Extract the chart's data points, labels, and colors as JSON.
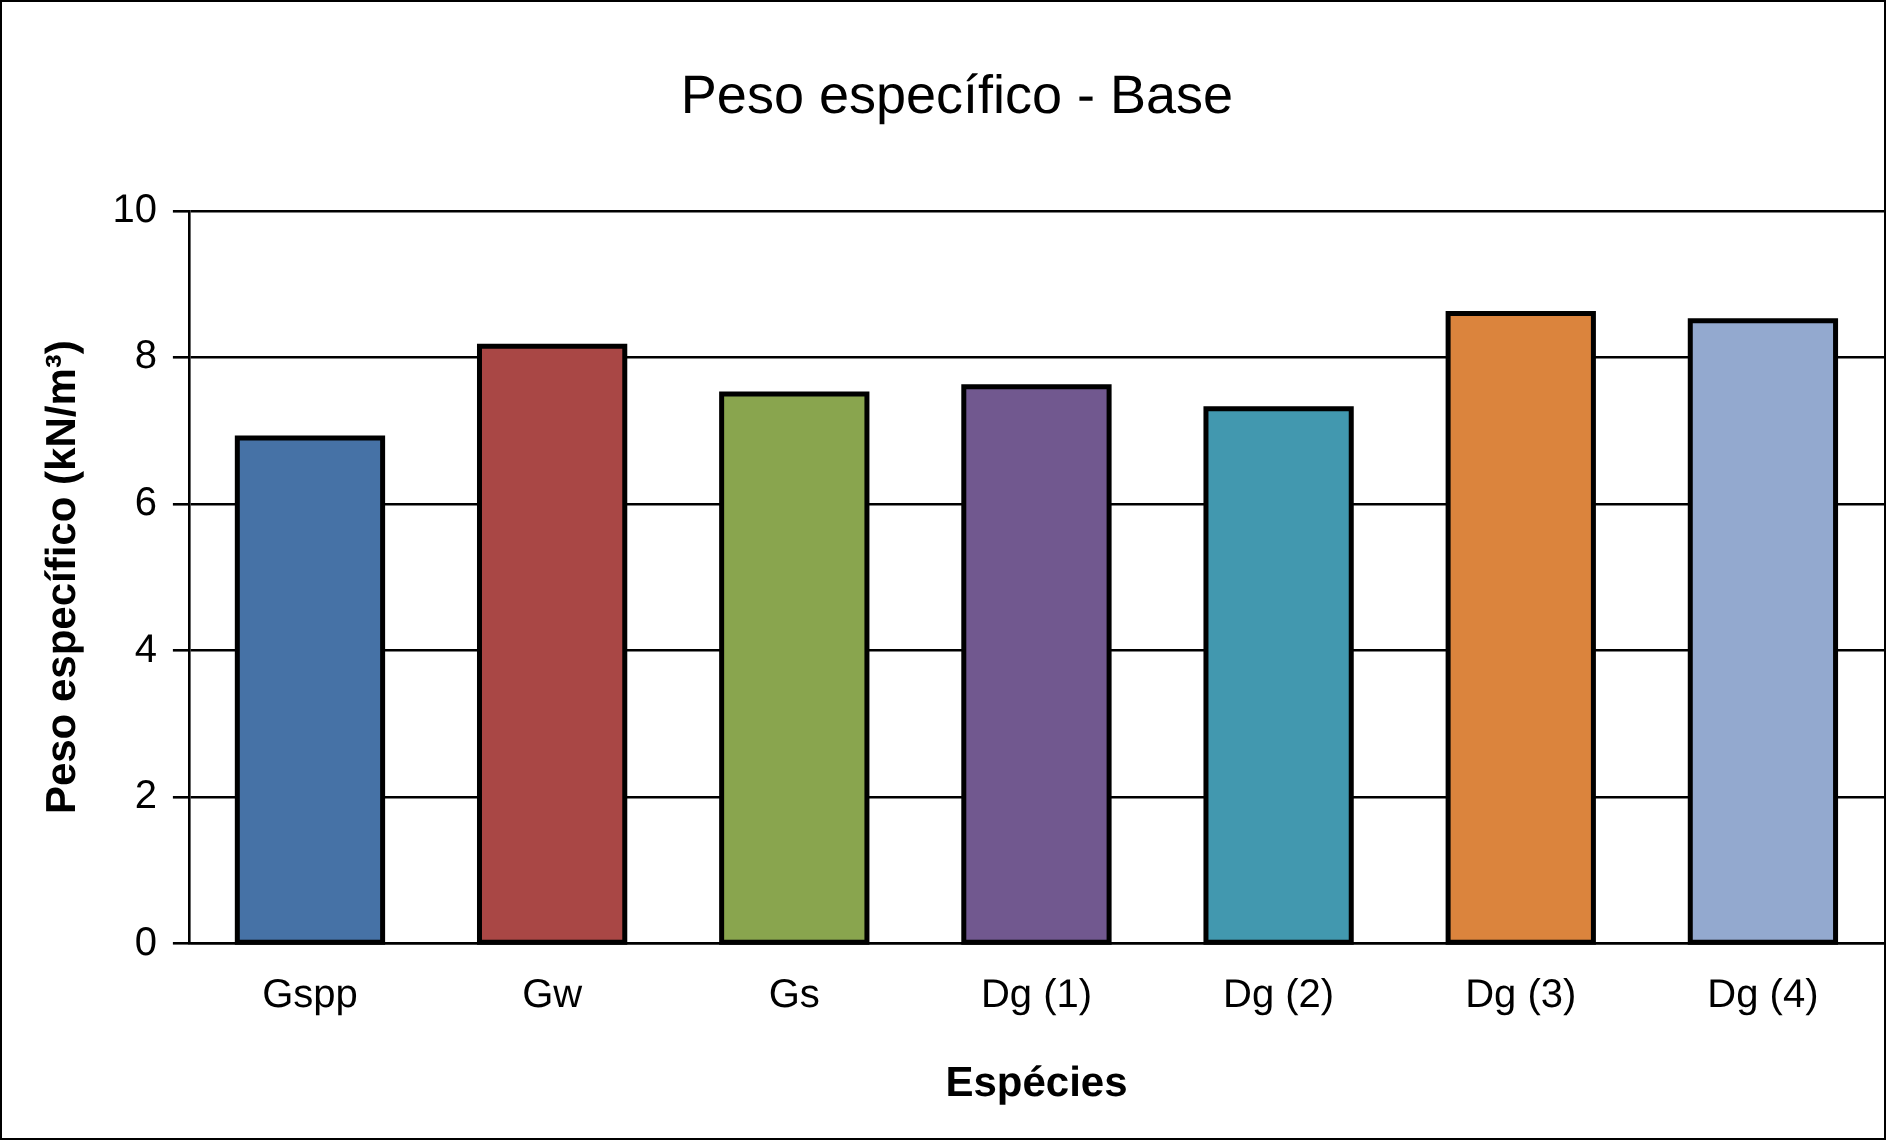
{
  "chart_data": {
    "type": "bar",
    "title": "Peso específico - Base",
    "xlabel": "Espécies",
    "ylabel": "Peso específico (kN/m³)",
    "categories": [
      "Gspp",
      "Gw",
      "Gs",
      "Dg (1)",
      "Dg (2)",
      "Dg (3)",
      "Dg (4)"
    ],
    "values": [
      6.9,
      8.15,
      7.5,
      7.6,
      7.3,
      8.6,
      8.5
    ],
    "colors": [
      "#4672a6",
      "#a94745",
      "#89a54e",
      "#71588f",
      "#4298af",
      "#db843d",
      "#93a9cf"
    ],
    "ylim": [
      0,
      10
    ],
    "yticks": [
      0,
      2,
      4,
      6,
      8,
      10
    ],
    "grid": "y",
    "legend": false
  }
}
